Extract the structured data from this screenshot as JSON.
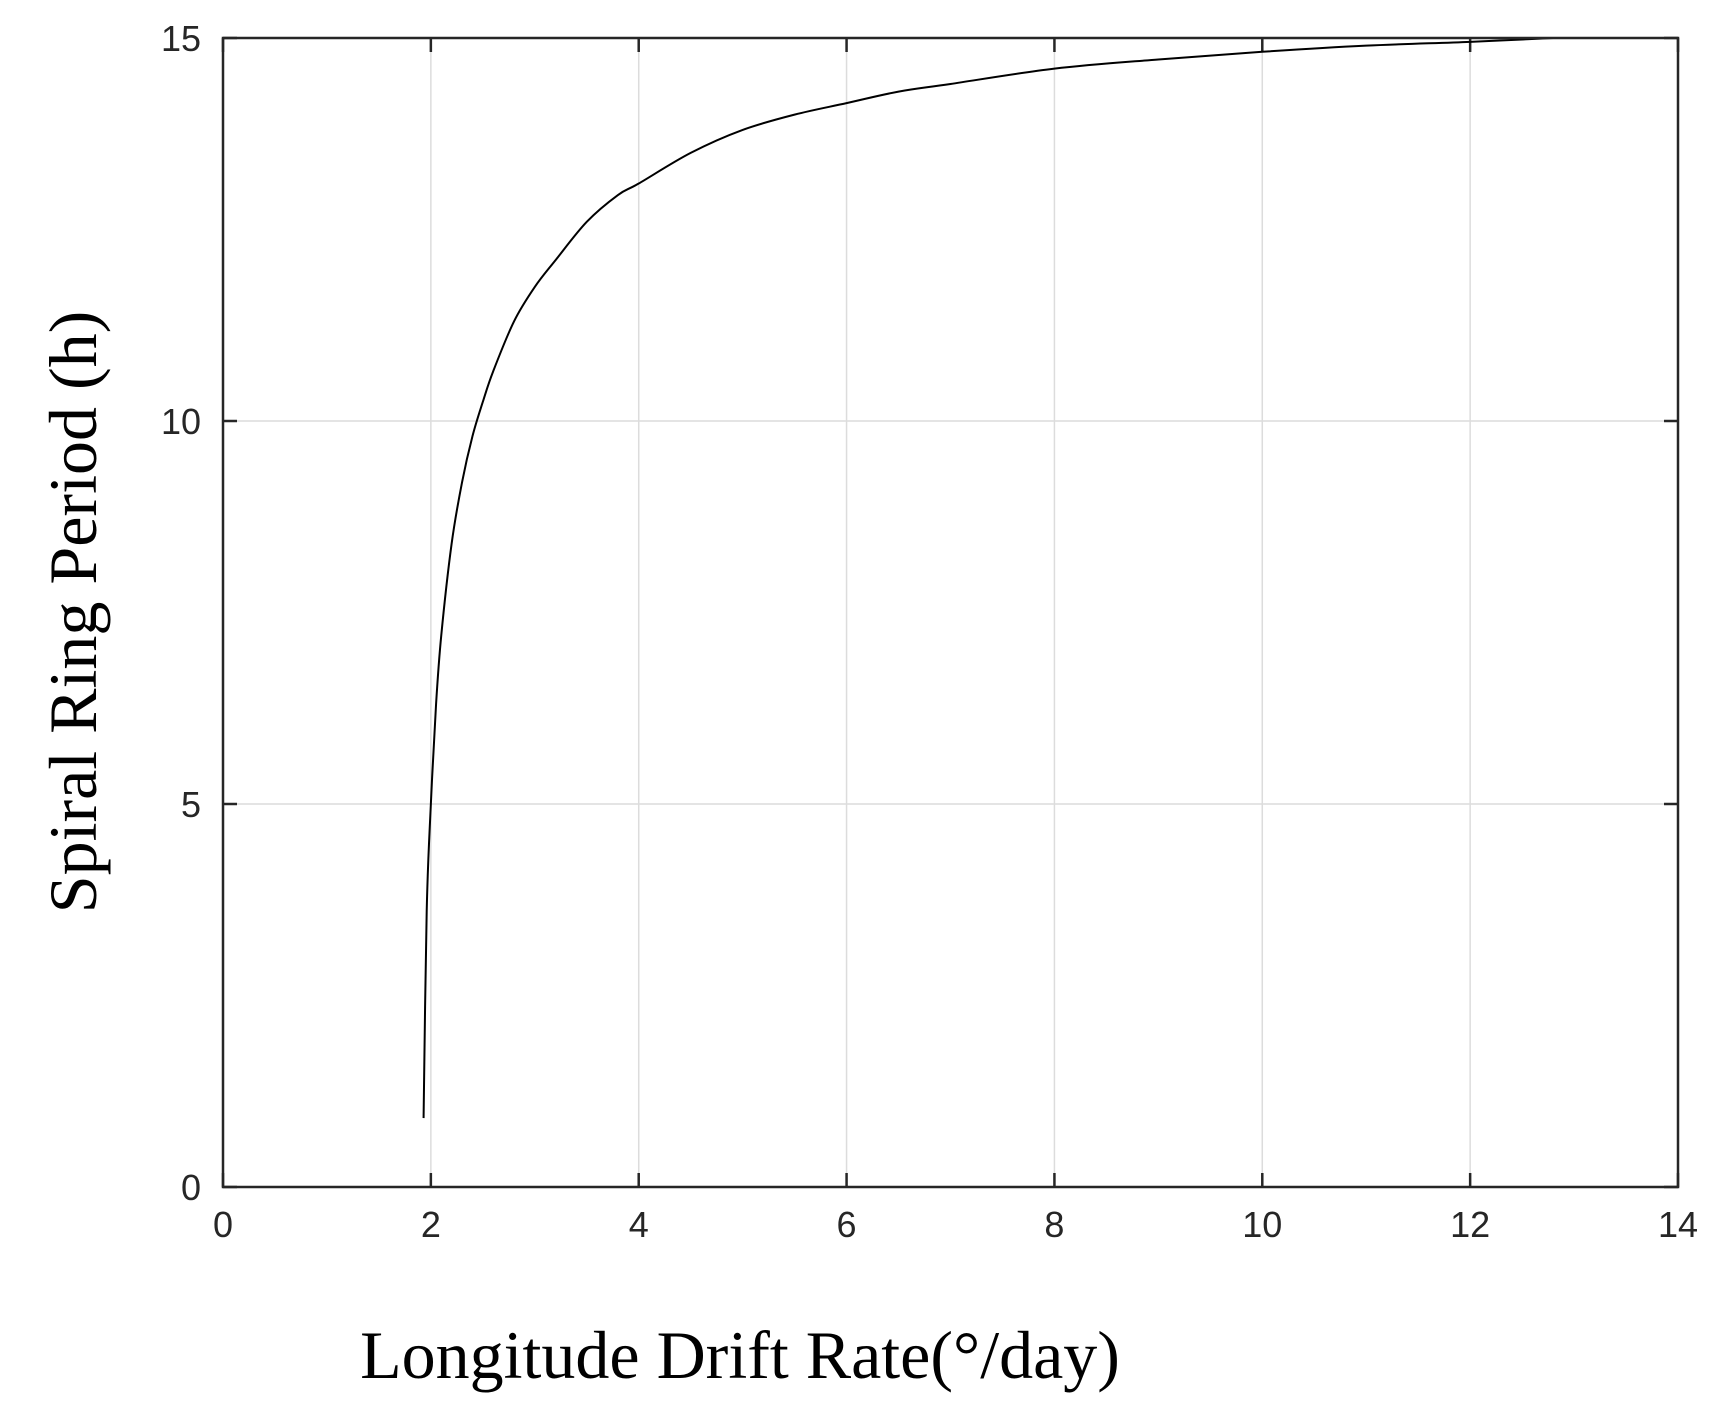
{
  "chart_data": {
    "type": "line",
    "xlabel": "Longitude Drift Rate(°/day)",
    "ylabel": "Spiral Ring Period (h)",
    "xlim": [
      0,
      14
    ],
    "ylim": [
      0,
      15
    ],
    "xticks": [
      "0",
      "2",
      "4",
      "6",
      "8",
      "10",
      "12",
      "14"
    ],
    "yticks": [
      "0",
      "5",
      "10",
      "15"
    ],
    "grid": true,
    "legend": "none",
    "series": [
      {
        "color": "#000000",
        "x": [
          1.93,
          1.96,
          2.0,
          2.05,
          2.1,
          2.2,
          2.3,
          2.4,
          2.5,
          2.6,
          2.8,
          3.0,
          3.2,
          3.5,
          3.8,
          4.0,
          4.5,
          5.0,
          5.5,
          6.0,
          6.5,
          7.0,
          8.0,
          9.0,
          10.0,
          11.0,
          12.0,
          12.8
        ],
        "y": [
          0.9,
          3.6,
          5.0,
          6.3,
          7.2,
          8.4,
          9.2,
          9.8,
          10.25,
          10.65,
          11.3,
          11.75,
          12.1,
          12.6,
          12.95,
          13.1,
          13.5,
          13.8,
          14.0,
          14.15,
          14.3,
          14.4,
          14.6,
          14.72,
          14.82,
          14.9,
          14.95,
          15.0
        ]
      }
    ]
  }
}
